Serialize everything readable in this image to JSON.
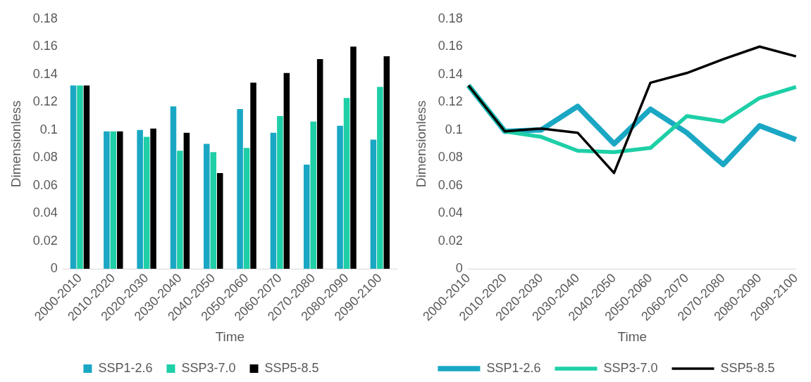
{
  "chart_data": [
    {
      "type": "bar",
      "xlabel": "Time",
      "ylabel": "Dimensionless",
      "categories": [
        "2000-2010",
        "2010-2020",
        "2020-2030",
        "2030-2040",
        "2040-2050",
        "2050-2060",
        "2060-2070",
        "2070-2080",
        "2080-2090",
        "2090-2100"
      ],
      "series": [
        {
          "name": "SSP1-2.6",
          "color": "#1aa7c4",
          "values": [
            0.132,
            0.099,
            0.1,
            0.117,
            0.09,
            0.115,
            0.098,
            0.075,
            0.103,
            0.093
          ]
        },
        {
          "name": "SSP3-7.0",
          "color": "#1ecfa7",
          "values": [
            0.132,
            0.099,
            0.095,
            0.085,
            0.084,
            0.087,
            0.11,
            0.106,
            0.123,
            0.131
          ]
        },
        {
          "name": "SSP5-8.5",
          "color": "#000000",
          "values": [
            0.132,
            0.099,
            0.101,
            0.098,
            0.069,
            0.134,
            0.141,
            0.151,
            0.16,
            0.153
          ]
        }
      ],
      "ylim": [
        0,
        0.18
      ],
      "yticks": [
        0,
        0.02,
        0.04,
        0.06,
        0.08,
        0.1,
        0.12,
        0.14,
        0.16,
        0.18
      ],
      "grid": false,
      "legend": "bottom"
    },
    {
      "type": "line",
      "xlabel": "Time",
      "ylabel": "Dimensionless",
      "categories": [
        "2000-2010",
        "2010-2020",
        "2020-2030",
        "2030-2040",
        "2040-2050",
        "2050-2060",
        "2060-2070",
        "2070-2080",
        "2080-2090",
        "2090-2100"
      ],
      "series": [
        {
          "name": "SSP1-2.6",
          "color": "#1aa7c4",
          "values": [
            0.132,
            0.099,
            0.1,
            0.117,
            0.09,
            0.115,
            0.098,
            0.075,
            0.103,
            0.093
          ]
        },
        {
          "name": "SSP3-7.0",
          "color": "#1ecfa7",
          "values": [
            0.132,
            0.099,
            0.095,
            0.085,
            0.084,
            0.087,
            0.11,
            0.106,
            0.123,
            0.131
          ]
        },
        {
          "name": "SSP5-8.5",
          "color": "#000000",
          "values": [
            0.132,
            0.099,
            0.101,
            0.098,
            0.069,
            0.134,
            0.141,
            0.151,
            0.16,
            0.153
          ]
        }
      ],
      "ylim": [
        0,
        0.18
      ],
      "yticks": [
        0,
        0.02,
        0.04,
        0.06,
        0.08,
        0.1,
        0.12,
        0.14,
        0.16,
        0.18
      ],
      "grid": false,
      "legend": "bottom",
      "marker": "none",
      "line_style": "solid"
    }
  ]
}
